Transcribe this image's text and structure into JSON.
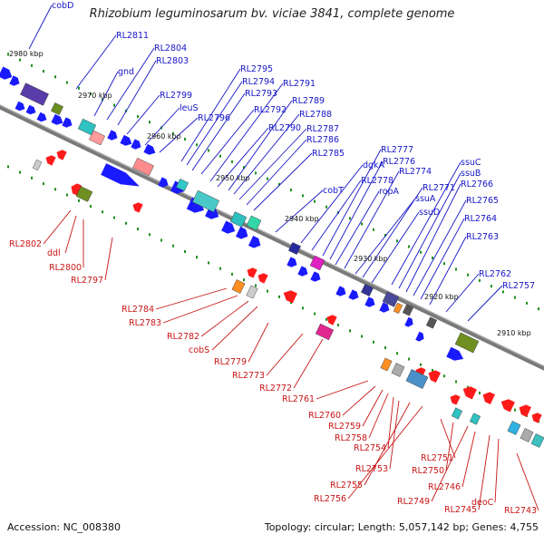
{
  "title": "Rhizobium leguminosarum bv. viciae 3841, complete genome",
  "footer": {
    "accession": "Accession: NC_008380",
    "topology": "Topology: circular; Length: 5,057,142 bp; Genes: 4,755"
  },
  "colors": {
    "forward": "#1a1aff",
    "reverse": "#ff1a1a",
    "backbone": "#7a7a7a",
    "tick": "#1f8f1f",
    "forward_label": "#1515c8",
    "reverse_label": "#c81515"
  },
  "kbp_marks": [
    "2980 kbp",
    "2970 kbp",
    "2960 kbp",
    "2950 kbp",
    "2940 kbp",
    "2930 kbp",
    "2920 kbp",
    "2910 kbp"
  ],
  "forward_labels": [
    "cobD",
    "RL2811",
    "gnd",
    "RL2804",
    "RL2803",
    "RL2799",
    "leuS",
    "RL2796",
    "RL2795",
    "RL2794",
    "RL2793",
    "RL2792",
    "RL2791",
    "RL2790",
    "RL2789",
    "RL2788",
    "RL2787",
    "RL2786",
    "RL2785",
    "cobT",
    "dgkA",
    "RL2778",
    "RL2777",
    "RL2776",
    "ropA",
    "RL2774",
    "ssuA",
    "RL2771",
    "ssuD",
    "ssuC",
    "ssuB",
    "RL2766",
    "RL2765",
    "RL2764",
    "RL2763",
    "RL2762",
    "RL2757"
  ],
  "reverse_labels": [
    "RL2802",
    "ddl",
    "RL2800",
    "RL2797",
    "RL2784",
    "RL2783",
    "RL2782",
    "cobS",
    "RL2779",
    "RL2773",
    "RL2772",
    "RL2761",
    "RL2760",
    "RL2759",
    "RL2758",
    "RL2754",
    "RL2753",
    "RL2755",
    "RL2756",
    "RL2751",
    "RL2750",
    "RL2749",
    "RL2746",
    "RL2745",
    "deoC",
    "RL2743"
  ]
}
